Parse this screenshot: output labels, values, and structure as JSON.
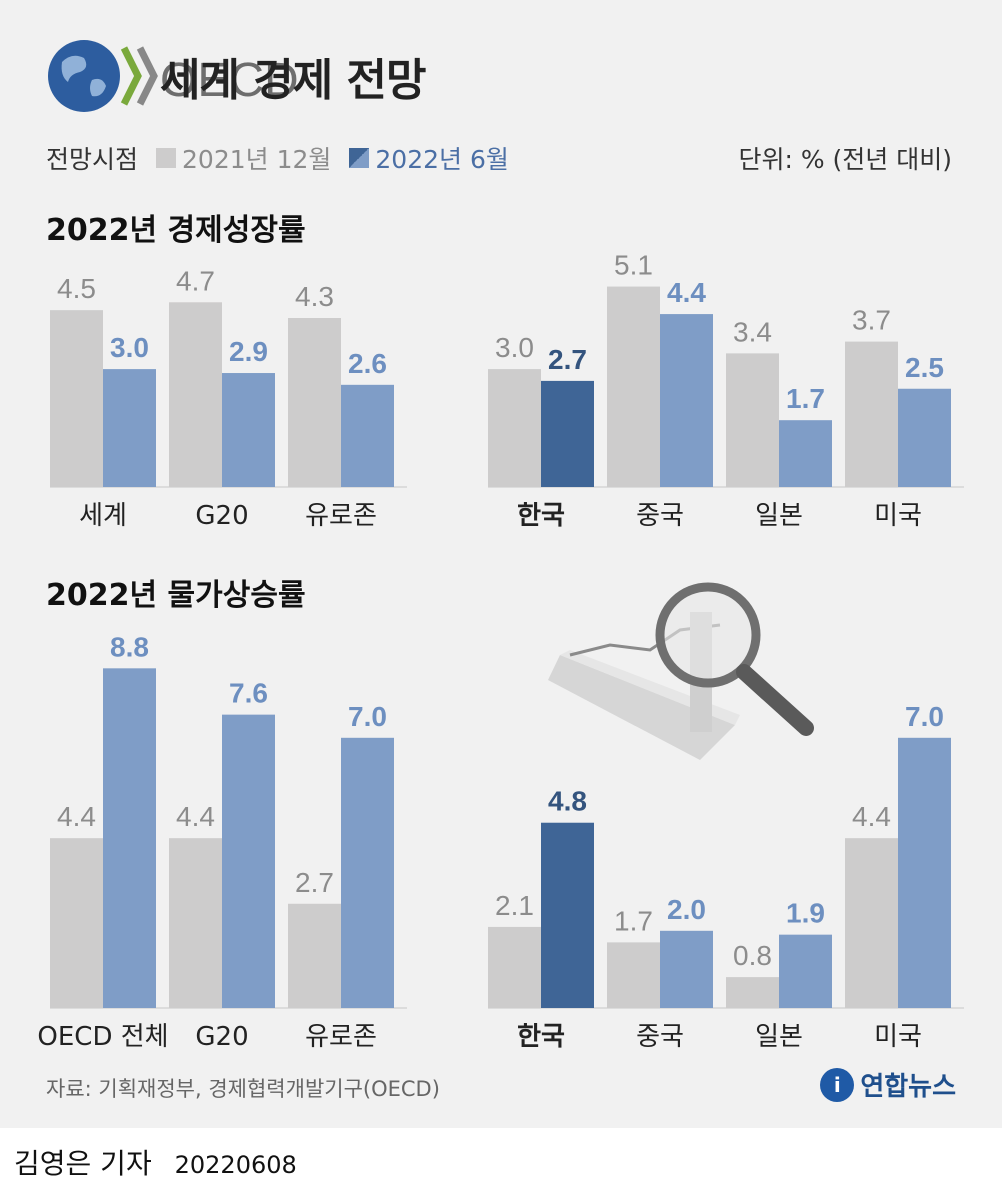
{
  "title": "세계 경제 전망",
  "logo": {
    "text": "OECD"
  },
  "legend": {
    "label": "전망시점",
    "items": [
      {
        "label": "2021년 12월",
        "color": "#cdcccc"
      },
      {
        "label": "2022년 6월",
        "color": "#7f9dc7"
      }
    ]
  },
  "unit": "단위: % (전년 대비)",
  "colors": {
    "old": "#cdcccc",
    "new": "#7f9dc7",
    "korea_new": "#3f6596",
    "old_label": "#8c8c8c",
    "new_label": "#6d8fc0",
    "korea_label": "#34547e"
  },
  "sections": {
    "growth_title": "2022년 경제성장률",
    "inflation_title": "2022년 물가상승률"
  },
  "chart_data": [
    {
      "type": "bar",
      "title": "2022년 경제성장률",
      "categories": [
        "세계",
        "G20",
        "유로존"
      ],
      "series": [
        {
          "name": "2021년 12월",
          "values": [
            4.5,
            4.7,
            4.3
          ]
        },
        {
          "name": "2022년 6월",
          "values": [
            3.0,
            2.9,
            2.6
          ]
        }
      ],
      "ylim": [
        0,
        5.1
      ]
    },
    {
      "type": "bar",
      "title": "2022년 경제성장률",
      "categories": [
        "한국",
        "중국",
        "일본",
        "미국"
      ],
      "series": [
        {
          "name": "2021년 12월",
          "values": [
            3.0,
            5.1,
            3.4,
            3.7
          ]
        },
        {
          "name": "2022년 6월",
          "values": [
            2.7,
            4.4,
            1.7,
            2.5
          ]
        }
      ],
      "ylim": [
        0,
        5.1
      ]
    },
    {
      "type": "bar",
      "title": "2022년 물가상승률",
      "categories": [
        "OECD 전체",
        "G20",
        "유로존"
      ],
      "series": [
        {
          "name": "2021년 12월",
          "values": [
            4.4,
            4.4,
            2.7
          ]
        },
        {
          "name": "2022년 6월",
          "values": [
            8.8,
            7.6,
            7.0
          ]
        }
      ],
      "ylim": [
        0,
        8.8
      ]
    },
    {
      "type": "bar",
      "title": "2022년 물가상승률",
      "categories": [
        "한국",
        "중국",
        "일본",
        "미국"
      ],
      "series": [
        {
          "name": "2021년 12월",
          "values": [
            2.1,
            1.7,
            0.8,
            4.4
          ]
        },
        {
          "name": "2022년 6월",
          "values": [
            4.8,
            2.0,
            1.9,
            7.0
          ]
        }
      ],
      "ylim": [
        0,
        8.8
      ]
    }
  ],
  "source": "자료: 기획재정부, 경제협력개발기구(OECD)",
  "agency": "연합뉴스",
  "byline": {
    "name": "김영은 기자",
    "date": "20220608"
  }
}
